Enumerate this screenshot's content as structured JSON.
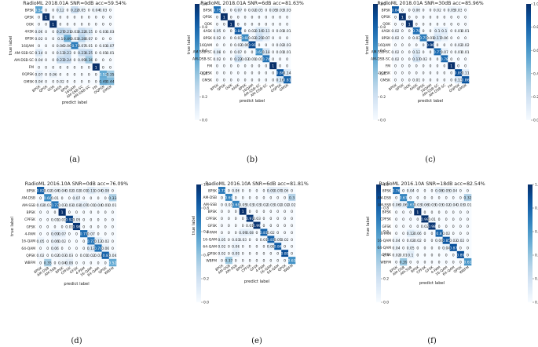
{
  "panel_labels": [
    "(a)",
    "(b)",
    "(c)",
    "(d)",
    "(e)",
    "(f)"
  ],
  "colorbar_ticks": [
    "1.0",
    "0.8",
    "0.6",
    "0.4",
    "0.2",
    "0.0"
  ],
  "chart_data": [
    {
      "type": "heatmap",
      "title": "RadioML 2018.01A SNR=0dB acc=59.54%",
      "xlabel": "predict label",
      "ylabel": "true label",
      "labels": [
        "BPSK",
        "QPSK",
        "OOK",
        "4ASK",
        "8PSK",
        "16QAM",
        "AM-SSB-SC",
        "AM-DSB-SC",
        "FM",
        "OQPSK",
        "GMSK"
      ],
      "values": [
        [
          0.54,
          0,
          0,
          0.12,
          0,
          0.22,
          0.05,
          0,
          0.04,
          0.03,
          0
        ],
        [
          0,
          1,
          0,
          0,
          0,
          0,
          0,
          0,
          0,
          0,
          0
        ],
        [
          0,
          0,
          1,
          0,
          0,
          0,
          0,
          0,
          0,
          0,
          0
        ],
        [
          0.06,
          0,
          0,
          0.27,
          0.21,
          0.03,
          0.22,
          0.15,
          0,
          0.03,
          0.03
        ],
        [
          0.02,
          0,
          0,
          0.1,
          0.49,
          0.03,
          0.28,
          0.07,
          0,
          0,
          0
        ],
        [
          0,
          0,
          0,
          0.06,
          0.06,
          0.7,
          0.07,
          0.01,
          0,
          0.03,
          0.07
        ],
        [
          0.14,
          0,
          0,
          0.13,
          0.23,
          0,
          0.23,
          0.25,
          0,
          0.01,
          0.01
        ],
        [
          0.04,
          0,
          0,
          0.23,
          0.24,
          0,
          0.09,
          0.36,
          0,
          0,
          0
        ],
        [
          0,
          0,
          0,
          0,
          0,
          0,
          0,
          0,
          1,
          0,
          0
        ],
        [
          0.07,
          0,
          0.06,
          0,
          0,
          0,
          0,
          0,
          0,
          0.52,
          0.35
        ],
        [
          0.04,
          0,
          0,
          0.02,
          0,
          0,
          0,
          0,
          0,
          0.49,
          0.44
        ]
      ],
      "range": [
        0,
        1
      ]
    },
    {
      "type": "heatmap",
      "title": "RadioML 2018.01A SNR=6dB acc=81.63%",
      "xlabel": "predict label",
      "ylabel": "true label",
      "labels": [
        "BPSK",
        "QPSK",
        "OOK",
        "4ASK",
        "8PSK",
        "16QAM",
        "AM-SSB-SC",
        "AM-DSB-SC",
        "FM",
        "OQPSK",
        "GMSK"
      ],
      "values": [
        [
          0.75,
          0,
          0,
          0.07,
          0,
          0.02,
          0.05,
          0,
          0.05,
          0.03,
          0.03
        ],
        [
          0,
          1,
          0,
          0,
          0,
          0,
          0,
          0,
          0,
          0,
          0
        ],
        [
          0,
          0,
          1,
          0,
          0,
          0,
          0,
          0,
          0,
          0,
          0
        ],
        [
          0.05,
          0,
          0,
          0.84,
          0,
          0.02,
          0.16,
          0.11,
          0,
          0.01,
          0.01
        ],
        [
          0.02,
          0,
          0,
          0.03,
          0.66,
          0.02,
          0.21,
          0.07,
          0,
          0,
          0
        ],
        [
          0,
          0,
          0,
          0.02,
          0.06,
          0.91,
          0,
          0,
          0,
          0.02,
          0.03
        ],
        [
          0.08,
          0,
          0,
          0.07,
          0,
          0,
          0.64,
          0.18,
          0,
          0.01,
          0.01
        ],
        [
          0.02,
          0,
          0,
          0.22,
          0.03,
          0.01,
          0.01,
          0.74,
          0,
          0,
          0
        ],
        [
          0,
          0,
          0,
          0,
          0,
          0,
          0,
          0,
          1,
          0,
          0
        ],
        [
          0,
          0,
          0,
          0,
          0,
          0,
          0,
          0,
          0,
          0.86,
          0.14
        ],
        [
          0,
          0,
          0,
          0,
          0,
          0,
          0,
          0,
          0,
          0.16,
          0.81
        ]
      ],
      "range": [
        0,
        1
      ]
    },
    {
      "type": "heatmap",
      "title": "RadioML 2018.01A SNR=30dB acc=85.96%",
      "xlabel": "predict label",
      "ylabel": "true label",
      "labels": [
        "BPSK",
        "QPSK",
        "OOK",
        "4ASK",
        "8PSK",
        "16QAM",
        "AM-SSB-SC",
        "AM-DSB-SC",
        "FM",
        "OQPSK",
        "GMSK"
      ],
      "values": [
        [
          0.84,
          0,
          0,
          0.06,
          0,
          0,
          0.02,
          0,
          0.05,
          0.03,
          0
        ],
        [
          0,
          1,
          0,
          0,
          0,
          0,
          0,
          0,
          0,
          0,
          0
        ],
        [
          0,
          0,
          1,
          0,
          0,
          0,
          0,
          0,
          0,
          0,
          0
        ],
        [
          0.02,
          0,
          0,
          0.76,
          0,
          0,
          0.1,
          0.1,
          0,
          0.01,
          0.01
        ],
        [
          0.02,
          0,
          0,
          0.03,
          0.71,
          0.01,
          0.17,
          0.06,
          0,
          0,
          0
        ],
        [
          0,
          0,
          0,
          0,
          0,
          0.96,
          0,
          0,
          0,
          0.02,
          0.02
        ],
        [
          0.02,
          0,
          0,
          0.12,
          0,
          0,
          0.77,
          0.07,
          0,
          0.01,
          0.01
        ],
        [
          0.02,
          0,
          0,
          0.17,
          0.02,
          0,
          0,
          0.78,
          0,
          0,
          0
        ],
        [
          0,
          0,
          0,
          0,
          0,
          0,
          0,
          0,
          1,
          0,
          0
        ],
        [
          0,
          0,
          0,
          0,
          0,
          0,
          0,
          0,
          0,
          0.89,
          0.11
        ],
        [
          0,
          0,
          0,
          0.01,
          0,
          0,
          0,
          0,
          0,
          0.13,
          0.86
        ]
      ],
      "range": [
        0,
        1
      ]
    },
    {
      "type": "heatmap",
      "title": "RadioML 2016.10A SNR=0dB acc=76.09%",
      "xlabel": "predict label",
      "ylabel": "true label",
      "labels": [
        "8PSK",
        "AM-DSB",
        "AM-SSB",
        "BPSK",
        "CPFSK",
        "GFSK",
        "4-PAM",
        "16-QAM",
        "64-QAM",
        "QPSK",
        "WBFM"
      ],
      "values": [
        [
          0.82,
          0.02,
          0.04,
          0.04,
          0.02,
          0.02,
          0.01,
          0.11,
          0.04,
          0.08,
          0
        ],
        [
          0,
          0.66,
          0.01,
          0,
          0,
          0.07,
          0,
          0,
          0,
          0,
          0.33
        ],
        [
          0.02,
          0.03,
          0.73,
          0.03,
          0.03,
          0.03,
          0.07,
          0.01,
          0.04,
          0.01,
          0.01
        ],
        [
          0,
          0,
          0,
          1,
          0,
          0,
          0,
          0,
          0,
          0,
          0
        ],
        [
          0,
          0,
          0.01,
          0.01,
          0.92,
          0.05,
          0,
          0,
          0,
          0,
          0
        ],
        [
          0,
          0,
          0,
          0,
          0.01,
          0.98,
          0,
          0,
          0,
          0,
          0
        ],
        [
          0,
          0,
          0.09,
          0.07,
          0,
          0,
          0.77,
          0.07,
          0,
          0,
          0
        ],
        [
          0.05,
          0,
          0.06,
          0.02,
          0,
          0,
          0,
          0.73,
          0.12,
          0.02,
          0
        ],
        [
          0,
          0,
          0.06,
          0,
          0,
          0,
          0,
          0.13,
          0.74,
          0.06,
          0
        ],
        [
          0.02,
          0,
          0.02,
          0.03,
          0.03,
          0,
          0.01,
          0.02,
          0.03,
          0.8,
          0.04
        ],
        [
          0,
          0.35,
          0,
          0.04,
          0.09,
          0,
          0,
          0,
          0,
          0,
          0.52
        ]
      ],
      "range": [
        0,
        1
      ]
    },
    {
      "type": "heatmap",
      "title": "RadioML 2016.10A SNR=6dB acc=81.81%",
      "xlabel": "predict label",
      "ylabel": "true label",
      "labels": [
        "8PSK",
        "AM-DSB",
        "AM-SSB",
        "BPSK",
        "CPFSK",
        "GFSK",
        "4-PAM",
        "16-QAM",
        "64-QAM",
        "QPSK",
        "WBFM"
      ],
      "values": [
        [
          0.72,
          0,
          0.06,
          0,
          0,
          0,
          0,
          0.09,
          0.07,
          0.06,
          0
        ],
        [
          0,
          0.69,
          0,
          0,
          0,
          0,
          0,
          0,
          0,
          0,
          0.3
        ],
        [
          0,
          0.03,
          0.68,
          0.05,
          0.03,
          0.03,
          0.02,
          0.03,
          0.02,
          0.02,
          0.02
        ],
        [
          0,
          0,
          0,
          1,
          0,
          0,
          0,
          0,
          0,
          0,
          0
        ],
        [
          0,
          0,
          0,
          0,
          0.97,
          0.03,
          0,
          0,
          0,
          0,
          0
        ],
        [
          0,
          0,
          0,
          0,
          0.01,
          0.99,
          0,
          0,
          0,
          0,
          0
        ],
        [
          0,
          0,
          0,
          0.09,
          0.08,
          0,
          0.81,
          0.02,
          0,
          0,
          0
        ],
        [
          0.05,
          0,
          0.03,
          0.03,
          0,
          0,
          0.01,
          0.81,
          0.05,
          0.02,
          0
        ],
        [
          0.02,
          0,
          0.06,
          0,
          0,
          0,
          0,
          0.08,
          0.84,
          0,
          0
        ],
        [
          0.02,
          0,
          0.09,
          0,
          0,
          0,
          0,
          0,
          0,
          0.89,
          0
        ],
        [
          0,
          0.37,
          0,
          0,
          0,
          0,
          0,
          0,
          0,
          0,
          0.63
        ]
      ],
      "range": [
        0,
        1
      ]
    },
    {
      "type": "heatmap",
      "title": "RadioML 2016.10A SNR=18dB acc=82.54%",
      "xlabel": "predict label",
      "ylabel": "true label",
      "labels": [
        "8PSK",
        "AM-DSB",
        "AM-SSB",
        "BPSK",
        "CPFSK",
        "GFSK",
        "4-PAM",
        "16-QAM",
        "64-QAM",
        "QPSK",
        "WBFM"
      ],
      "values": [
        [
          0.76,
          0,
          0.04,
          0,
          0,
          0,
          0.08,
          0.05,
          0.04,
          0,
          0
        ],
        [
          0,
          0.67,
          0,
          0,
          0,
          0,
          0,
          0,
          0,
          0,
          0.32
        ],
        [
          0.06,
          0.06,
          0.63,
          0.03,
          0.06,
          0.03,
          0.03,
          0.02,
          0.04,
          0.03,
          0.01
        ],
        [
          0,
          0,
          0,
          1,
          0,
          0,
          0,
          0,
          0,
          0,
          0
        ],
        [
          0,
          0,
          0,
          0,
          0.99,
          0.01,
          0,
          0,
          0,
          0,
          0
        ],
        [
          0,
          0,
          0,
          0,
          0.02,
          0.98,
          0,
          0,
          0,
          0,
          0
        ],
        [
          0,
          0,
          0.12,
          0.06,
          0,
          0,
          0.8,
          0.02,
          0,
          0,
          0
        ],
        [
          0.04,
          0,
          0.02,
          0.02,
          0,
          0,
          0.04,
          0.85,
          0.02,
          0.02,
          0
        ],
        [
          0.04,
          0,
          0.05,
          0,
          0,
          0,
          0,
          0.04,
          0.87,
          0,
          0
        ],
        [
          0.02,
          0.01,
          0.1,
          0,
          0,
          0,
          0,
          0,
          0,
          0.89,
          0
        ],
        [
          0,
          0.39,
          0,
          0,
          0,
          0,
          0,
          0,
          0,
          0,
          0.61
        ]
      ],
      "range": [
        0,
        1
      ]
    }
  ]
}
